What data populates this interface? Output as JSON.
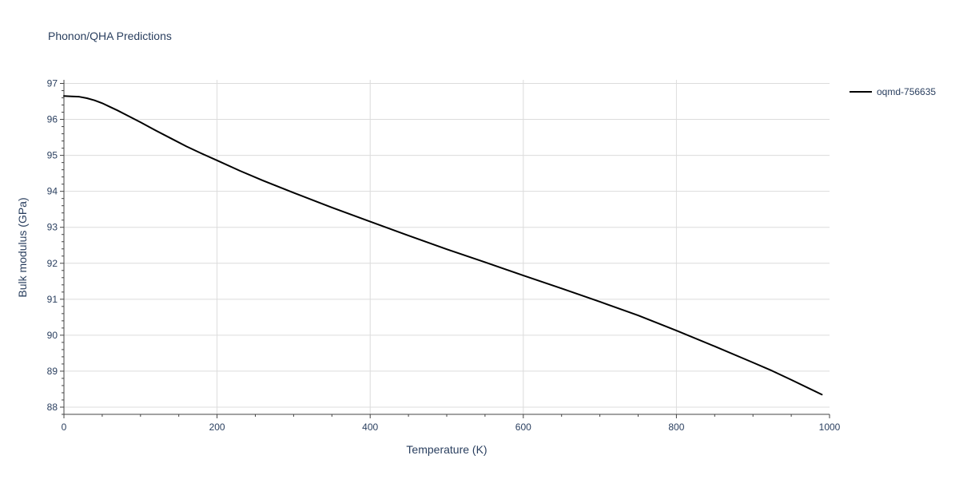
{
  "chart_data": {
    "type": "line",
    "title": "Phonon/QHA Predictions",
    "xlabel": "Temperature (K)",
    "ylabel": "Bulk modulus (GPa)",
    "xlim": [
      0,
      1000
    ],
    "ylim": [
      87.8,
      97.1
    ],
    "x_ticks": [
      0,
      200,
      400,
      600,
      800,
      1000
    ],
    "y_ticks": [
      88,
      89,
      90,
      91,
      92,
      93,
      94,
      95,
      96,
      97
    ],
    "x_minor_step": 50,
    "y_minor_step": 0.2,
    "grid": true,
    "legend_position": "top-right",
    "series": [
      {
        "name": "oqmd-756635",
        "color": "#000000",
        "x": [
          0,
          10,
          20,
          30,
          40,
          50,
          60,
          70,
          80,
          100,
          120,
          140,
          160,
          180,
          200,
          230,
          260,
          300,
          350,
          400,
          450,
          500,
          550,
          600,
          650,
          700,
          750,
          800,
          850,
          900,
          925,
          950,
          990
        ],
        "y": [
          96.65,
          96.64,
          96.63,
          96.59,
          96.53,
          96.45,
          96.35,
          96.25,
          96.14,
          95.92,
          95.69,
          95.47,
          95.25,
          95.05,
          94.86,
          94.57,
          94.3,
          93.96,
          93.55,
          93.16,
          92.77,
          92.39,
          92.03,
          91.66,
          91.3,
          90.93,
          90.55,
          90.13,
          89.69,
          89.24,
          89.01,
          88.76,
          88.35
        ]
      }
    ]
  }
}
